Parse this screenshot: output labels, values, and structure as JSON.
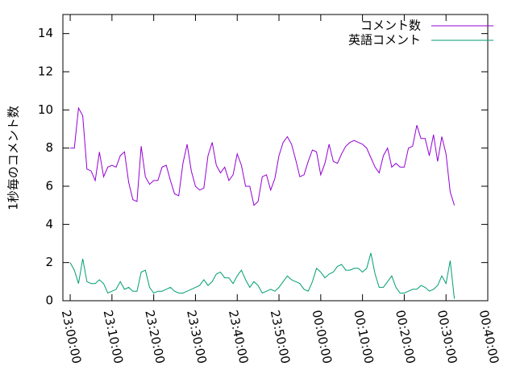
{
  "chart_data": {
    "type": "line",
    "ylabel": "1秒毎のコメント数",
    "x": [
      "23:00:00",
      "23:01:00",
      "23:02:00",
      "23:03:00",
      "23:04:00",
      "23:05:00",
      "23:06:00",
      "23:07:00",
      "23:08:00",
      "23:09:00",
      "23:10:00",
      "23:11:00",
      "23:12:00",
      "23:13:00",
      "23:14:00",
      "23:15:00",
      "23:16:00",
      "23:17:00",
      "23:18:00",
      "23:19:00",
      "23:20:00",
      "23:21:00",
      "23:22:00",
      "23:23:00",
      "23:24:00",
      "23:25:00",
      "23:26:00",
      "23:27:00",
      "23:28:00",
      "23:29:00",
      "23:30:00",
      "23:31:00",
      "23:32:00",
      "23:33:00",
      "23:34:00",
      "23:35:00",
      "23:36:00",
      "23:37:00",
      "23:38:00",
      "23:39:00",
      "23:40:00",
      "23:41:00",
      "23:42:00",
      "23:43:00",
      "23:44:00",
      "23:45:00",
      "23:46:00",
      "23:47:00",
      "23:48:00",
      "23:49:00",
      "23:50:00",
      "23:51:00",
      "23:52:00",
      "23:53:00",
      "23:54:00",
      "23:55:00",
      "23:56:00",
      "23:57:00",
      "23:58:00",
      "23:59:00",
      "00:00:00",
      "00:01:00",
      "00:02:00",
      "00:03:00",
      "00:04:00",
      "00:05:00",
      "00:06:00",
      "00:07:00",
      "00:08:00",
      "00:09:00",
      "00:10:00",
      "00:11:00",
      "00:12:00",
      "00:13:00",
      "00:14:00",
      "00:15:00",
      "00:16:00",
      "00:17:00",
      "00:18:00",
      "00:19:00",
      "00:20:00",
      "00:21:00",
      "00:22:00",
      "00:23:00",
      "00:24:00",
      "00:25:00",
      "00:26:00",
      "00:27:00",
      "00:28:00",
      "00:29:00",
      "00:30:00",
      "00:31:00",
      "00:32:00"
    ],
    "series": [
      {
        "name": "コメント数",
        "color": "#9400d3",
        "values": [
          8.0,
          8.0,
          10.1,
          9.7,
          6.9,
          6.8,
          6.3,
          7.8,
          6.5,
          7.0,
          7.1,
          7.0,
          7.6,
          7.8,
          6.2,
          5.3,
          5.2,
          8.1,
          6.5,
          6.1,
          6.3,
          6.3,
          7.0,
          7.1,
          6.3,
          5.6,
          5.5,
          7.2,
          8.2,
          6.8,
          6.0,
          5.8,
          5.9,
          7.6,
          8.3,
          7.1,
          6.7,
          7.0,
          6.3,
          6.6,
          7.7,
          7.1,
          6.0,
          6.0,
          5.0,
          5.2,
          6.5,
          6.6,
          5.8,
          6.4,
          7.6,
          8.3,
          8.6,
          8.2,
          7.4,
          6.5,
          6.6,
          7.3,
          7.9,
          7.8,
          6.6,
          7.2,
          8.2,
          7.3,
          7.2,
          7.7,
          8.1,
          8.3,
          8.4,
          8.3,
          8.2,
          8.0,
          7.5,
          7.0,
          6.7,
          7.6,
          8.0,
          7.0,
          7.2,
          7.0,
          7.0,
          8.0,
          8.1,
          9.2,
          8.5,
          8.5,
          7.6,
          8.7,
          7.3,
          8.6,
          7.7,
          5.7,
          5.0
        ]
      },
      {
        "name": "英語コメント",
        "color": "#009e73",
        "values": [
          2.0,
          1.6,
          0.9,
          2.2,
          1.0,
          0.9,
          0.9,
          1.1,
          0.9,
          0.4,
          0.5,
          0.6,
          1.0,
          0.6,
          0.7,
          0.5,
          0.5,
          1.5,
          1.6,
          0.7,
          0.4,
          0.5,
          0.5,
          0.6,
          0.7,
          0.5,
          0.4,
          0.4,
          0.5,
          0.6,
          0.7,
          0.8,
          1.1,
          0.8,
          1.0,
          1.4,
          1.5,
          1.2,
          1.2,
          0.9,
          1.3,
          1.6,
          1.1,
          0.7,
          1.0,
          0.8,
          0.4,
          0.5,
          0.6,
          0.5,
          0.7,
          1.0,
          1.3,
          1.1,
          1.0,
          0.9,
          0.6,
          0.5,
          1.0,
          1.7,
          1.5,
          1.2,
          1.4,
          1.5,
          1.8,
          1.9,
          1.6,
          1.6,
          1.7,
          1.7,
          1.5,
          1.7,
          2.5,
          1.4,
          0.7,
          0.7,
          1.0,
          1.3,
          0.7,
          0.4,
          0.4,
          0.5,
          0.6,
          0.6,
          0.8,
          0.7,
          0.5,
          0.6,
          0.8,
          1.3,
          0.9,
          2.1,
          0.1
        ]
      }
    ],
    "xlim": [
      "22:58:15",
      "00:40:00"
    ],
    "xticks": [
      "23:00:00",
      "23:10:00",
      "23:20:00",
      "23:30:00",
      "23:40:00",
      "23:50:00",
      "00:00:00",
      "00:10:00",
      "00:20:00",
      "00:30:00",
      "00:40:00"
    ],
    "ylim": [
      0,
      15
    ],
    "yticks": [
      0,
      2,
      4,
      6,
      8,
      10,
      12,
      14
    ],
    "legend": "top-right"
  }
}
